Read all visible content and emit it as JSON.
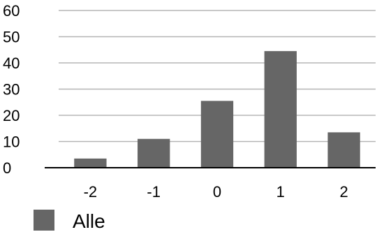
{
  "chart_data": {
    "type": "bar",
    "categories": [
      "-2",
      "-1",
      "0",
      "1",
      "2"
    ],
    "series": [
      {
        "name": "Alle",
        "values": [
          3.5,
          11,
          25.5,
          44.5,
          13.5
        ],
        "color": "#666666"
      }
    ],
    "ylim": [
      0,
      60
    ],
    "yticks": [
      "0",
      "10",
      "20",
      "30",
      "40",
      "50",
      "60"
    ],
    "grid": true,
    "gridline_color": "#b5b5b5",
    "legend_position": "bottom-left"
  }
}
